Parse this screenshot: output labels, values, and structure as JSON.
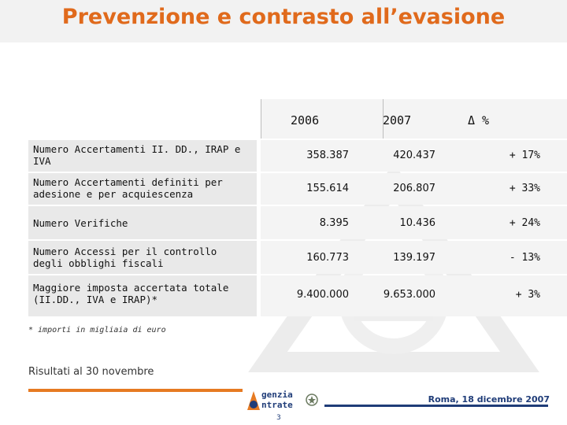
{
  "slide": {
    "title": "Prevenzione e contrasto all’evasione",
    "page_number": "3",
    "date_footer": "Roma, 18 dicembre 2007",
    "footnote": "* importi in migliaia di euro",
    "subnote": "Risultati al 30 novembre",
    "logo": {
      "line1": "genzia",
      "line2": "ntrate"
    }
  },
  "table": {
    "headers": [
      "2006",
      "2007",
      "Δ %"
    ],
    "rows": [
      {
        "label": "Numero Accertamenti II. DD., IRAP e IVA",
        "v2006": "358.387",
        "v2007": "420.437",
        "delta": "+ 17%"
      },
      {
        "label": "Numero Accertamenti definiti per adesione e per acquiescenza",
        "v2006": "155.614",
        "v2007": "206.807",
        "delta": "+ 33%"
      },
      {
        "label": "Numero Verifiche",
        "v2006": "8.395",
        "v2007": "10.436",
        "delta": "+ 24%"
      },
      {
        "label": "Numero Accessi per il controllo degli obblighi fiscali",
        "v2006": "160.773",
        "v2007": "139.197",
        "delta": "- 13%"
      },
      {
        "label": "Maggiore imposta accertata totale (II.DD., IVA e IRAP)*",
        "v2006": "9.400.000",
        "v2007": "9.653.000",
        "delta": "+ 3%"
      }
    ]
  },
  "colors": {
    "title": "#e06a1c",
    "accent_orange": "#e67a22",
    "accent_blue": "#1f3c78",
    "label_bg": "#e9e9e9"
  }
}
